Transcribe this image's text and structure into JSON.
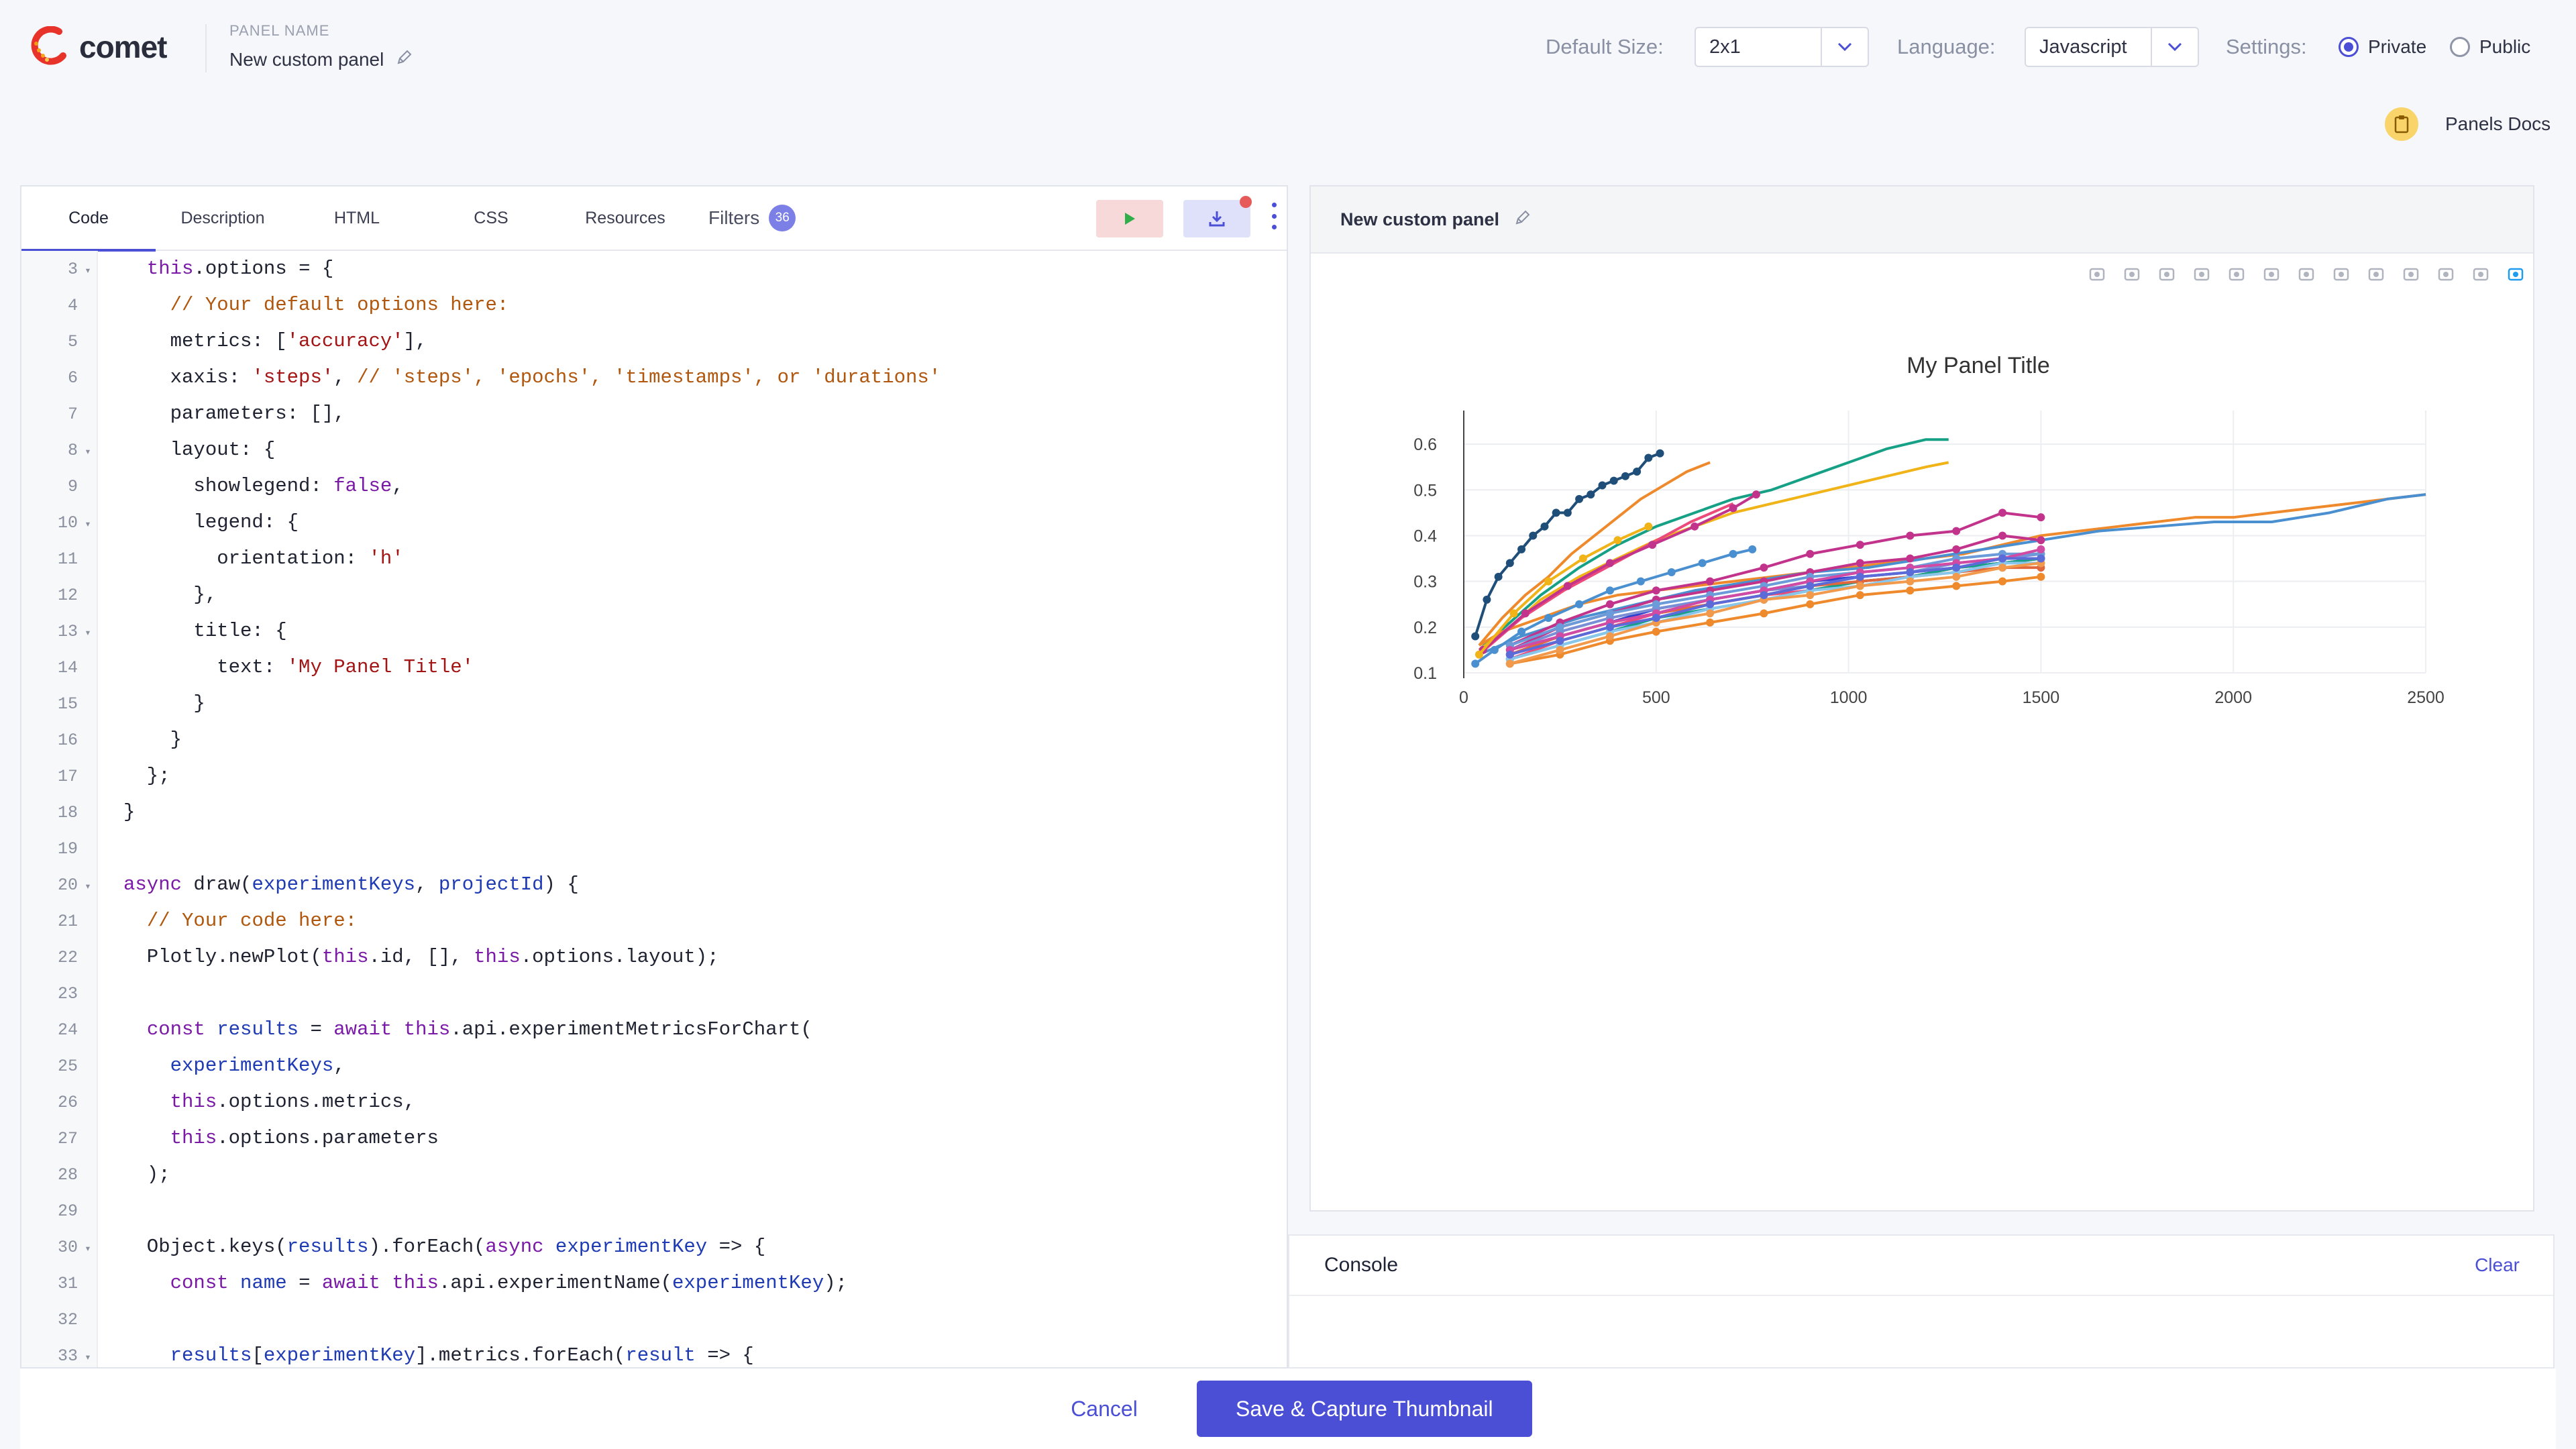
{
  "brand": {
    "name": "comet"
  },
  "panel": {
    "name_label": "PANEL NAME",
    "name_value": "New custom panel"
  },
  "settings": {
    "default_size_label": "Default Size:",
    "default_size_value": "2x1",
    "language_label": "Language:",
    "language_value": "Javascript",
    "settings_label": "Settings:",
    "private_label": "Private",
    "public_label": "Public",
    "visibility_selected": "Private"
  },
  "docs": {
    "label": "Panels Docs"
  },
  "editor": {
    "tabs": [
      "Code",
      "Description",
      "HTML",
      "CSS",
      "Resources"
    ],
    "active_tab": "Code",
    "filters_label": "Filters",
    "filters_count": "36",
    "lines": [
      {
        "n": "3",
        "fold": true,
        "code": "  this.options = {"
      },
      {
        "n": "4",
        "fold": false,
        "code": "    // Your default options here:"
      },
      {
        "n": "5",
        "fold": false,
        "code": "    metrics: ['accuracy'],"
      },
      {
        "n": "6",
        "fold": false,
        "code": "    xaxis: 'steps', // 'steps', 'epochs', 'timestamps', or 'durations'"
      },
      {
        "n": "7",
        "fold": false,
        "code": "    parameters: [],"
      },
      {
        "n": "8",
        "fold": true,
        "code": "    layout: {"
      },
      {
        "n": "9",
        "fold": false,
        "code": "      showlegend: false,"
      },
      {
        "n": "10",
        "fold": true,
        "code": "      legend: {"
      },
      {
        "n": "11",
        "fold": false,
        "code": "        orientation: 'h'"
      },
      {
        "n": "12",
        "fold": false,
        "code": "      },"
      },
      {
        "n": "13",
        "fold": true,
        "code": "      title: {"
      },
      {
        "n": "14",
        "fold": false,
        "code": "        text: 'My Panel Title'"
      },
      {
        "n": "15",
        "fold": false,
        "code": "      }"
      },
      {
        "n": "16",
        "fold": false,
        "code": "    }"
      },
      {
        "n": "17",
        "fold": false,
        "code": "  };"
      },
      {
        "n": "18",
        "fold": false,
        "code": "}"
      },
      {
        "n": "19",
        "fold": false,
        "code": ""
      },
      {
        "n": "20",
        "fold": true,
        "code": "async draw(experimentKeys, projectId) {"
      },
      {
        "n": "21",
        "fold": false,
        "code": "  // Your code here:"
      },
      {
        "n": "22",
        "fold": false,
        "code": "  Plotly.newPlot(this.id, [], this.options.layout);"
      },
      {
        "n": "23",
        "fold": false,
        "code": ""
      },
      {
        "n": "24",
        "fold": false,
        "code": "  const results = await this.api.experimentMetricsForChart("
      },
      {
        "n": "25",
        "fold": false,
        "code": "    experimentKeys,"
      },
      {
        "n": "26",
        "fold": false,
        "code": "    this.options.metrics,"
      },
      {
        "n": "27",
        "fold": false,
        "code": "    this.options.parameters"
      },
      {
        "n": "28",
        "fold": false,
        "code": "  );"
      },
      {
        "n": "29",
        "fold": false,
        "code": ""
      },
      {
        "n": "30",
        "fold": true,
        "code": "  Object.keys(results).forEach(async experimentKey => {"
      },
      {
        "n": "31",
        "fold": false,
        "code": "    const name = await this.api.experimentName(experimentKey);"
      },
      {
        "n": "32",
        "fold": false,
        "code": ""
      },
      {
        "n": "33",
        "fold": true,
        "code": "    results[experimentKey].metrics.forEach(result => {"
      }
    ]
  },
  "preview": {
    "title": "New custom panel"
  },
  "console": {
    "title": "Console",
    "clear_label": "Clear"
  },
  "actions": {
    "cancel_label": "Cancel",
    "save_label": "Save & Capture Thumbnail"
  },
  "modebar_icons": [
    "camera-icon",
    "zoom-icon",
    "pan-icon",
    "box-select-icon",
    "lasso-icon",
    "zoom-in-icon",
    "zoom-out-icon",
    "autoscale-icon",
    "reset-axes-icon",
    "spike-lines-icon",
    "hover-closest-icon",
    "hover-compare-icon",
    "plotly-logo-icon"
  ],
  "colors": {
    "accent": "#4b4fd6",
    "run_bg": "#f7d9d9",
    "download_bg": "#dfe1fa"
  },
  "chart_data": {
    "type": "line",
    "title": "My Panel Title",
    "xlabel": "",
    "ylabel": "",
    "xlim": [
      0,
      2500
    ],
    "ylim": [
      0.1,
      0.65
    ],
    "x_ticks": [
      0,
      500,
      1000,
      1500,
      2000,
      2500
    ],
    "y_ticks": [
      0.1,
      0.2,
      0.3,
      0.4,
      0.5,
      0.6
    ],
    "grid": true,
    "legend": false,
    "series": [
      {
        "color": "#1f4e79",
        "markers": true,
        "x": [
          30,
          60,
          90,
          120,
          150,
          180,
          210,
          240,
          270,
          300,
          330,
          360,
          390,
          420,
          450,
          480,
          510
        ],
        "y": [
          0.18,
          0.26,
          0.31,
          0.34,
          0.37,
          0.4,
          0.42,
          0.45,
          0.45,
          0.48,
          0.49,
          0.51,
          0.52,
          0.53,
          0.54,
          0.57,
          0.58
        ]
      },
      {
        "color": "#ef8a2c",
        "markers": false,
        "x": [
          40,
          100,
          160,
          220,
          280,
          340,
          400,
          460,
          520,
          580,
          640
        ],
        "y": [
          0.16,
          0.22,
          0.27,
          0.31,
          0.36,
          0.4,
          0.44,
          0.48,
          0.51,
          0.54,
          0.56
        ]
      },
      {
        "color": "#16a085",
        "markers": false,
        "x": [
          40,
          120,
          200,
          300,
          400,
          500,
          600,
          700,
          800,
          900,
          1000,
          1100,
          1200,
          1260
        ],
        "y": [
          0.15,
          0.21,
          0.27,
          0.33,
          0.38,
          0.42,
          0.45,
          0.48,
          0.5,
          0.53,
          0.56,
          0.59,
          0.61,
          0.61
        ]
      },
      {
        "color": "#f0b418",
        "markers": false,
        "x": [
          40,
          120,
          200,
          300,
          400,
          500,
          600,
          700,
          800,
          900,
          1000,
          1100,
          1200,
          1260
        ],
        "y": [
          0.15,
          0.2,
          0.26,
          0.31,
          0.35,
          0.39,
          0.42,
          0.45,
          0.47,
          0.49,
          0.51,
          0.53,
          0.55,
          0.56
        ]
      },
      {
        "color": "#ef8a2c",
        "markers": false,
        "x": [
          40,
          100,
          200,
          300,
          400,
          500,
          600,
          700,
          800,
          900,
          1000,
          1100,
          1200,
          1300,
          1400,
          1500,
          1600,
          1700,
          1800,
          1900,
          2000,
          2100,
          2200,
          2300,
          2400,
          2500
        ],
        "y": [
          0.16,
          0.19,
          0.22,
          0.25,
          0.27,
          0.28,
          0.29,
          0.3,
          0.31,
          0.32,
          0.33,
          0.34,
          0.35,
          0.36,
          0.38,
          0.4,
          0.41,
          0.42,
          0.43,
          0.44,
          0.44,
          0.45,
          0.46,
          0.47,
          0.48,
          0.49
        ]
      },
      {
        "color": "#4a8fd0",
        "markers": false,
        "x": [
          40,
          150,
          300,
          450,
          600,
          750,
          900,
          1050,
          1200,
          1350,
          1500,
          1650,
          1800,
          1950,
          2100,
          2250,
          2400,
          2500
        ],
        "y": [
          0.14,
          0.18,
          0.22,
          0.25,
          0.28,
          0.3,
          0.32,
          0.33,
          0.35,
          0.37,
          0.39,
          0.41,
          0.42,
          0.43,
          0.43,
          0.45,
          0.48,
          0.49
        ]
      },
      {
        "color": "#c2338c",
        "markers": true,
        "x": [
          120,
          250,
          380,
          500,
          640,
          780,
          900,
          1030,
          1160,
          1280,
          1400,
          1500
        ],
        "y": [
          0.16,
          0.21,
          0.25,
          0.28,
          0.3,
          0.33,
          0.36,
          0.38,
          0.4,
          0.41,
          0.45,
          0.44
        ]
      },
      {
        "color": "#c2338c",
        "markers": true,
        "x": [
          120,
          250,
          380,
          500,
          640,
          780,
          900,
          1030,
          1160,
          1280,
          1400,
          1500
        ],
        "y": [
          0.15,
          0.2,
          0.23,
          0.26,
          0.28,
          0.3,
          0.32,
          0.34,
          0.35,
          0.37,
          0.4,
          0.39
        ]
      },
      {
        "color": "#4a8fd0",
        "markers": true,
        "x": [
          30,
          80,
          150,
          220,
          300,
          380,
          460,
          540,
          620,
          700,
          750
        ],
        "y": [
          0.12,
          0.15,
          0.19,
          0.22,
          0.25,
          0.28,
          0.3,
          0.32,
          0.34,
          0.36,
          0.37
        ]
      },
      {
        "color": "#2e3fcf",
        "markers": true,
        "x": [
          120,
          250,
          380,
          500,
          640,
          780,
          900,
          1030,
          1160,
          1280,
          1400,
          1500
        ],
        "y": [
          0.14,
          0.18,
          0.21,
          0.24,
          0.26,
          0.28,
          0.3,
          0.31,
          0.32,
          0.33,
          0.34,
          0.35
        ]
      },
      {
        "color": "#ec4a7b",
        "markers": true,
        "x": [
          120,
          250,
          380,
          500,
          640,
          780,
          900,
          1030,
          1160,
          1280,
          1400,
          1500
        ],
        "y": [
          0.13,
          0.17,
          0.2,
          0.23,
          0.25,
          0.27,
          0.28,
          0.3,
          0.31,
          0.33,
          0.34,
          0.35
        ]
      },
      {
        "color": "#ef8a2c",
        "markers": true,
        "x": [
          120,
          250,
          380,
          500,
          640,
          780,
          900,
          1030,
          1160,
          1280,
          1400,
          1500
        ],
        "y": [
          0.12,
          0.14,
          0.17,
          0.19,
          0.21,
          0.23,
          0.25,
          0.27,
          0.28,
          0.29,
          0.3,
          0.31
        ]
      },
      {
        "color": "#16a085",
        "markers": true,
        "x": [
          120,
          250,
          380,
          500,
          640,
          780,
          900,
          1030,
          1160,
          1280,
          1400,
          1500
        ],
        "y": [
          0.13,
          0.16,
          0.19,
          0.22,
          0.24,
          0.26,
          0.28,
          0.3,
          0.31,
          0.33,
          0.34,
          0.35
        ]
      },
      {
        "color": "#7a8ed6",
        "markers": true,
        "x": [
          120,
          250,
          380,
          500,
          640,
          780,
          900,
          1030,
          1160,
          1280,
          1400,
          1500
        ],
        "y": [
          0.15,
          0.19,
          0.22,
          0.24,
          0.26,
          0.28,
          0.29,
          0.31,
          0.32,
          0.34,
          0.35,
          0.36
        ]
      },
      {
        "color": "#e0683c",
        "markers": true,
        "x": [
          120,
          250,
          380,
          500,
          640,
          780,
          900,
          1030,
          1160,
          1280,
          1400,
          1500
        ],
        "y": [
          0.14,
          0.18,
          0.21,
          0.23,
          0.25,
          0.27,
          0.29,
          0.3,
          0.31,
          0.32,
          0.33,
          0.33
        ]
      },
      {
        "color": "#6b9bd8",
        "markers": true,
        "x": [
          120,
          250,
          380,
          500,
          640,
          780,
          900,
          1030,
          1160,
          1280,
          1400,
          1500
        ],
        "y": [
          0.16,
          0.2,
          0.23,
          0.25,
          0.27,
          0.29,
          0.31,
          0.32,
          0.33,
          0.35,
          0.36,
          0.36
        ]
      },
      {
        "color": "#d14ba4",
        "markers": true,
        "x": [
          120,
          250,
          380,
          500,
          640,
          780,
          900,
          1030,
          1160,
          1280,
          1400,
          1500
        ],
        "y": [
          0.15,
          0.18,
          0.21,
          0.23,
          0.26,
          0.28,
          0.3,
          0.32,
          0.33,
          0.34,
          0.35,
          0.37
        ]
      },
      {
        "color": "#88c6ec",
        "markers": true,
        "x": [
          120,
          250,
          380,
          500,
          640,
          780,
          900,
          1030,
          1160,
          1280,
          1400,
          1500
        ],
        "y": [
          0.13,
          0.16,
          0.19,
          0.21,
          0.24,
          0.26,
          0.28,
          0.29,
          0.31,
          0.32,
          0.34,
          0.34
        ]
      },
      {
        "color": "#f29a4c",
        "markers": true,
        "x": [
          120,
          250,
          380,
          500,
          640,
          780,
          900,
          1030,
          1160,
          1280,
          1400,
          1500
        ],
        "y": [
          0.12,
          0.15,
          0.18,
          0.21,
          0.23,
          0.26,
          0.27,
          0.29,
          0.3,
          0.31,
          0.33,
          0.34
        ]
      },
      {
        "color": "#5b6bd8",
        "markers": true,
        "x": [
          120,
          250,
          380,
          500,
          640,
          780,
          900,
          1030,
          1160,
          1280,
          1400,
          1500
        ],
        "y": [
          0.14,
          0.17,
          0.2,
          0.22,
          0.25,
          0.27,
          0.29,
          0.31,
          0.32,
          0.33,
          0.35,
          0.35
        ]
      },
      {
        "color": "#ec4a7b",
        "markers": false,
        "x": [
          40,
          150,
          260,
          370,
          480,
          590,
          700
        ],
        "y": [
          0.14,
          0.22,
          0.28,
          0.33,
          0.38,
          0.43,
          0.47
        ]
      },
      {
        "color": "#c2338c",
        "markers": true,
        "x": [
          50,
          160,
          270,
          380,
          490,
          600,
          700,
          760
        ],
        "y": [
          0.15,
          0.23,
          0.29,
          0.34,
          0.38,
          0.42,
          0.46,
          0.49
        ]
      },
      {
        "color": "#f0b418",
        "markers": true,
        "x": [
          40,
          130,
          220,
          310,
          400,
          480
        ],
        "y": [
          0.14,
          0.23,
          0.3,
          0.35,
          0.39,
          0.42
        ]
      }
    ]
  }
}
